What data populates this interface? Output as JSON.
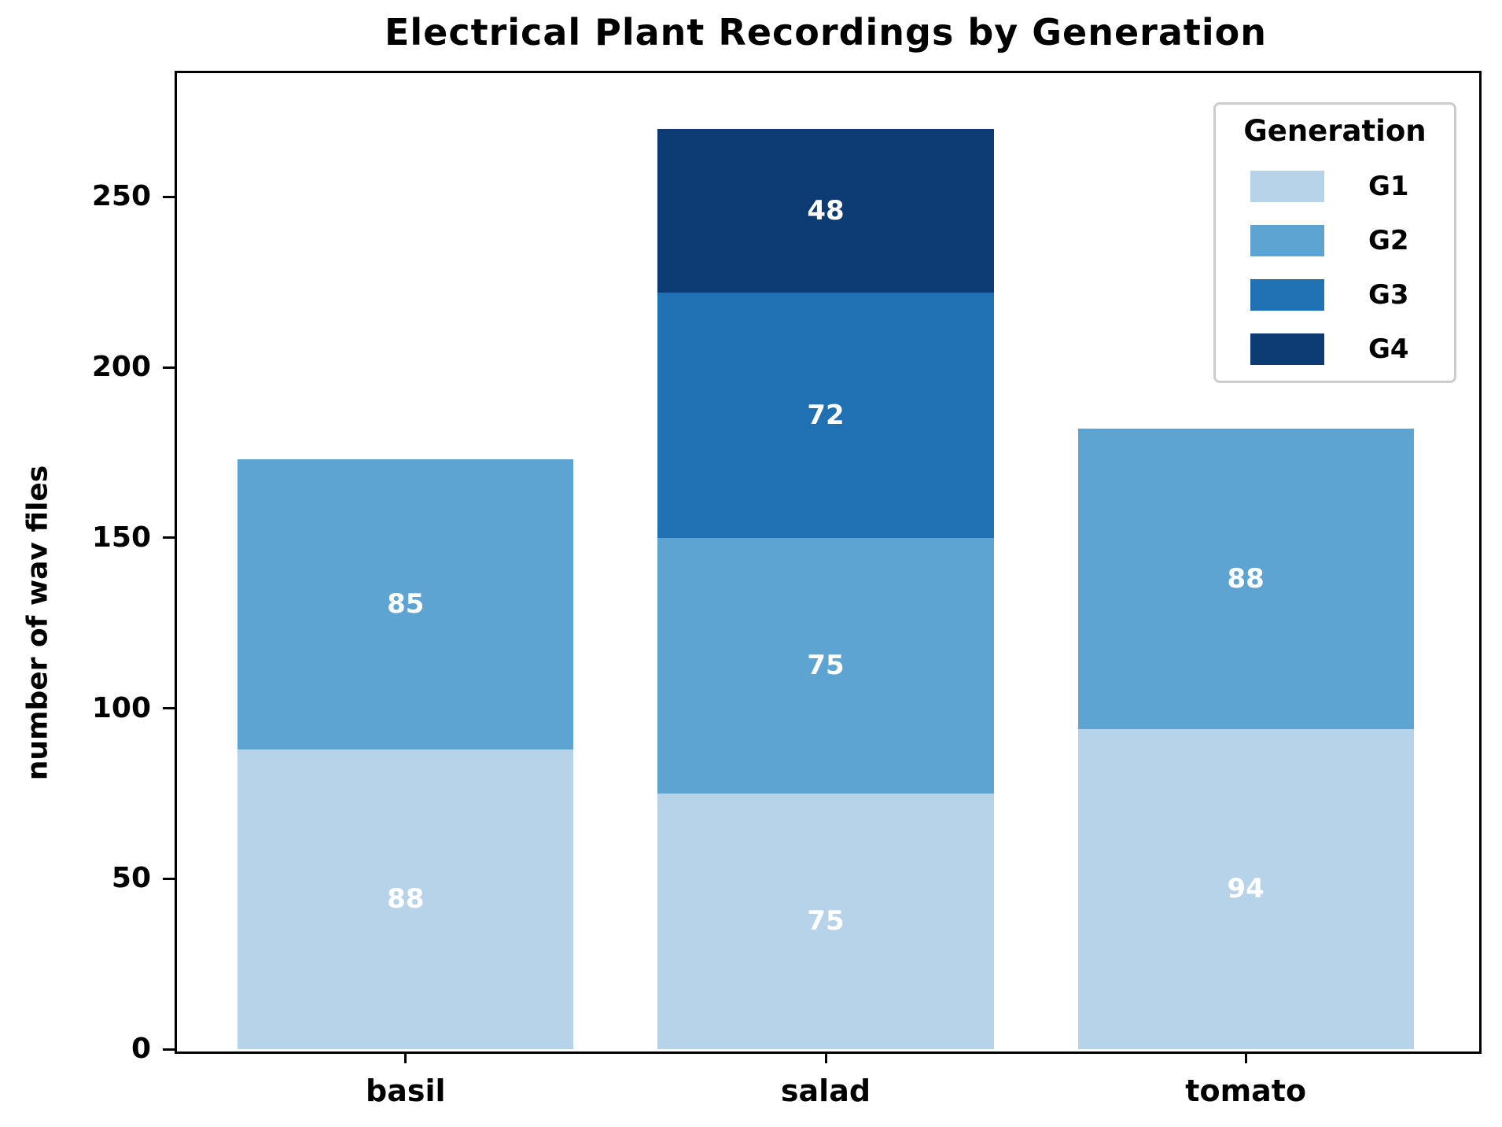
{
  "chart_data": {
    "type": "bar",
    "stacked": true,
    "title": "Electrical Plant Recordings by Generation",
    "xlabel": "",
    "ylabel": "number of wav files",
    "categories": [
      "basil",
      "salad",
      "tomato"
    ],
    "series": [
      {
        "name": "G1",
        "color": "#b7d3ea",
        "values": [
          88,
          75,
          94
        ]
      },
      {
        "name": "G2",
        "color": "#5ea4d2",
        "values": [
          85,
          75,
          88
        ]
      },
      {
        "name": "G3",
        "color": "#2070b4",
        "values": [
          0,
          72,
          0
        ]
      },
      {
        "name": "G4",
        "color": "#0c3a72",
        "values": [
          0,
          48,
          0
        ]
      }
    ],
    "totals": {
      "basil": 173,
      "salad": 270,
      "tomato": 182
    },
    "bar_value_labels_color": "#ffffff",
    "yticks": [
      0,
      50,
      100,
      150,
      200,
      250
    ],
    "ylim": [
      0,
      287
    ],
    "grid": false,
    "legend": {
      "title": "Generation",
      "position": "upper right",
      "entries": [
        "G1",
        "G2",
        "G3",
        "G4"
      ]
    },
    "spine_color": "#000000"
  }
}
